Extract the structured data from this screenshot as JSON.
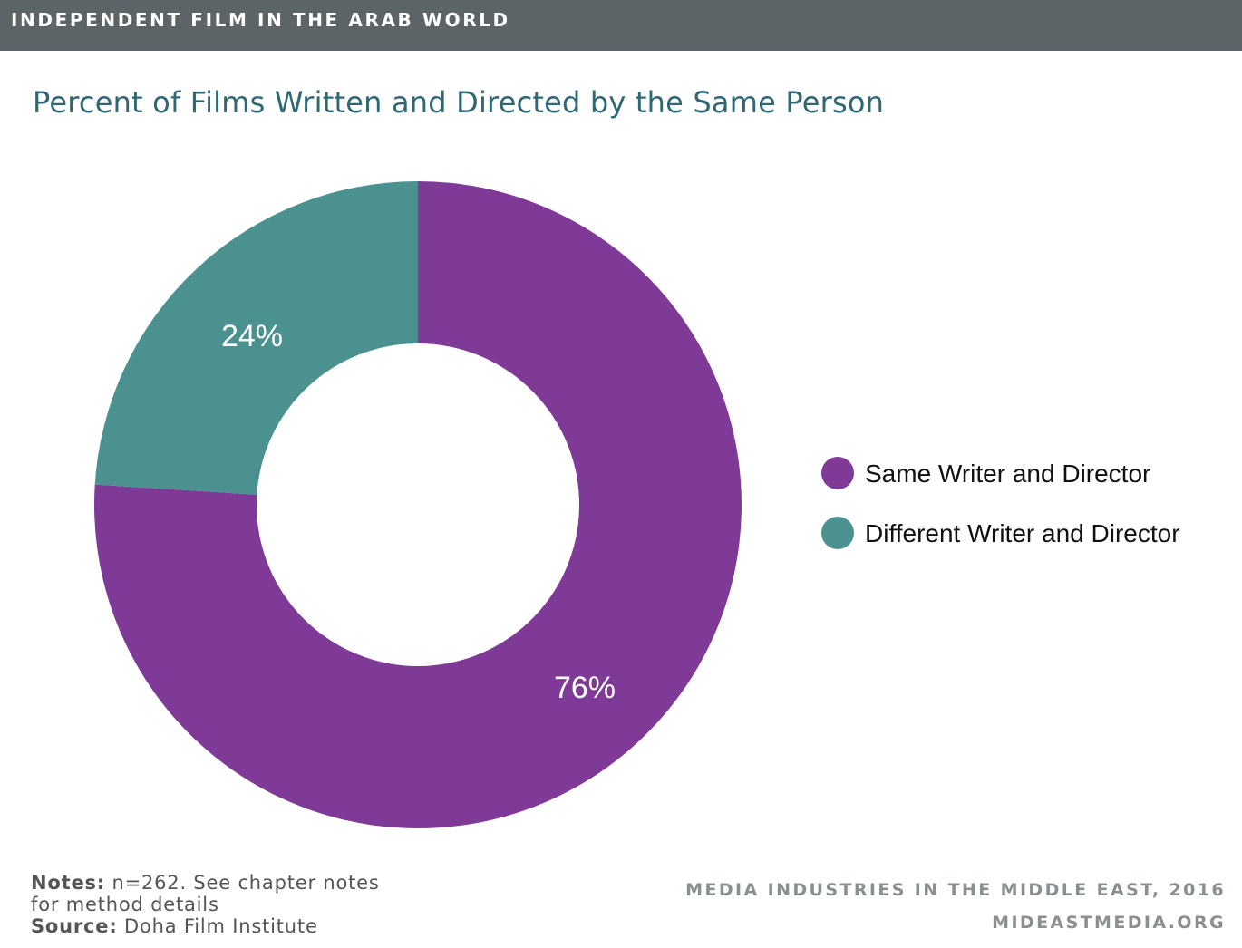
{
  "header": {
    "series_label": "INDEPENDENT FILM IN THE ARAB WORLD"
  },
  "chart_data": {
    "type": "pie",
    "title": "Percent of Films Written and Directed by the Same Person",
    "donut": true,
    "legend_position": "right",
    "slices": [
      {
        "label": "Same Writer and Director",
        "value": 76,
        "display": "76%",
        "color": "#7f3996"
      },
      {
        "label": "Different Writer and Director",
        "value": 24,
        "display": "24%",
        "color": "#4a9190"
      }
    ]
  },
  "footer": {
    "notes_label": "Notes:",
    "notes_text_1": " n=262. See chapter notes",
    "notes_text_2": "for method details",
    "source_label": "Source:",
    "source_text": " Doha Film Institute",
    "publication": "MEDIA INDUSTRIES IN THE MIDDLE EAST, 2016",
    "website": "MIDEASTMEDIA.ORG"
  }
}
